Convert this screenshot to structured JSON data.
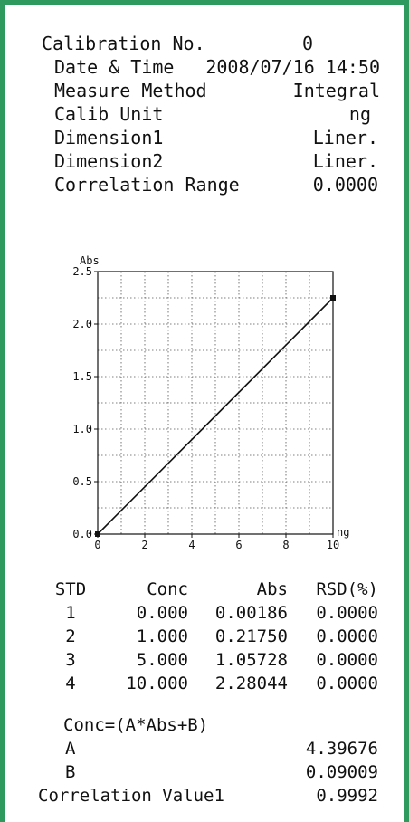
{
  "header": {
    "calibration_no_label": "Calibration No.",
    "calibration_no_value": "0",
    "date_time_label": "Date & Time",
    "date_time_value": "2008/07/16 14:50",
    "measure_method_label": "Measure Method",
    "measure_method_value": "Integral",
    "calib_unit_label": "Calib Unit",
    "calib_unit_value": "ng",
    "dimension1_label": "Dimension1",
    "dimension1_value": "Liner.",
    "dimension2_label": "Dimension2",
    "dimension2_value": "Liner.",
    "correlation_range_label": "Correlation Range",
    "correlation_range_value": "0.0000"
  },
  "chart_data": {
    "type": "line",
    "title": "",
    "xlabel": "ng",
    "ylabel": "Abs",
    "xlim": [
      0,
      10
    ],
    "ylim": [
      0,
      2.5
    ],
    "x_ticks": [
      "0",
      "2",
      "4",
      "6",
      "8",
      "10"
    ],
    "y_ticks": [
      "0.0",
      "0.5",
      "1.0",
      "1.5",
      "2.0",
      "2.5"
    ],
    "grid": true,
    "fit_line": {
      "x": [
        0,
        10
      ],
      "y": [
        0.0,
        2.25
      ]
    },
    "points": [
      {
        "x": 0,
        "y": 0.0
      },
      {
        "x": 10,
        "y": 2.25
      }
    ]
  },
  "table": {
    "headers": [
      "STD",
      "Conc",
      "Abs",
      "RSD(%)"
    ],
    "rows": [
      [
        "1",
        "0.000",
        "0.00186",
        "0.0000"
      ],
      [
        "2",
        "1.000",
        "0.21750",
        "0.0000"
      ],
      [
        "3",
        "5.000",
        "1.05728",
        "0.0000"
      ],
      [
        "4",
        "10.000",
        "2.28044",
        "0.0000"
      ]
    ]
  },
  "formula": {
    "equation": "Conc=(A*Abs+B)",
    "a_label": "A",
    "a_value": "4.39676",
    "b_label": "B",
    "b_value": "0.09009",
    "correlation_label": "Correlation Value1",
    "correlation_value": "0.9992"
  },
  "colors": {
    "frame": "#2e9a5e",
    "ink": "#111111",
    "grid": "#555555"
  }
}
